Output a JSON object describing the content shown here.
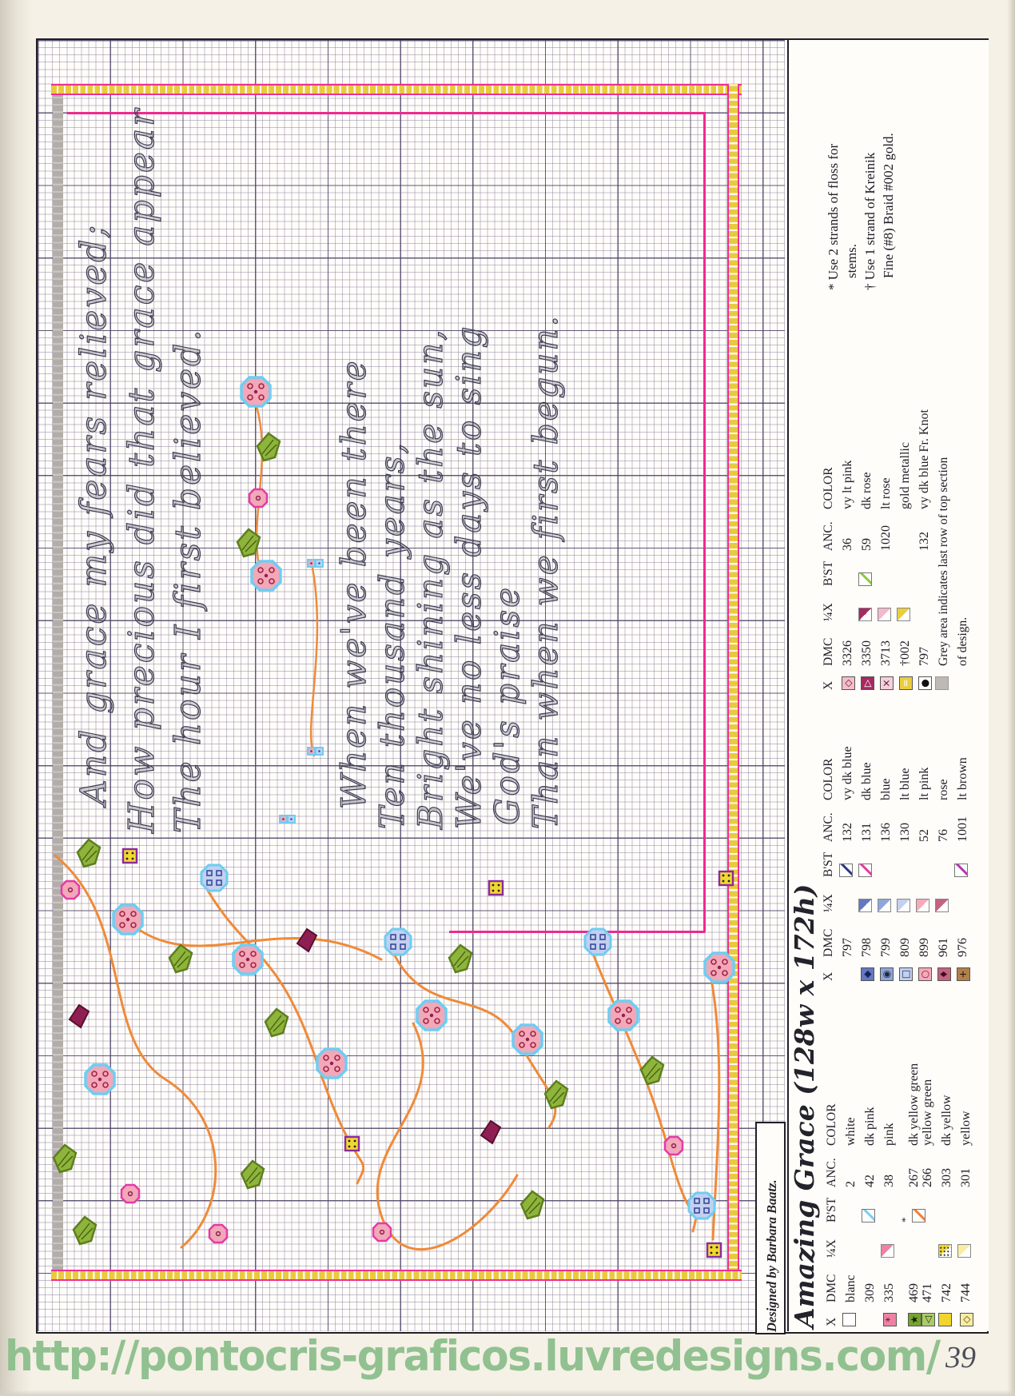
{
  "page": {
    "number": "39",
    "watermark_url": "http://pontocris-graficos.luvredesigns.com/"
  },
  "title": "Amazing Grace (128w x 172h)",
  "credit": "Designed by Barbara Baatz.",
  "notes": [
    "* Use 2 strands of floss for",
    "stems.",
    "† Use 1 strand of Kreinik",
    "Fine (#8) Braid #002 gold."
  ],
  "key": {
    "headers": [
      "X",
      "DMC",
      "¼X",
      "B'ST",
      "ANC.",
      "COLOR"
    ],
    "grey_color": "#bdb9b5",
    "grey_note_lines": [
      "Grey area indicates last row of top section",
      "of design."
    ],
    "groups": [
      {
        "rows": [
          {
            "dmc": "3326",
            "anc": "36",
            "color": "vy lt pink",
            "sym": {
              "bg": "#f5bdca",
              "glyph": "◇",
              "fg": "#5a2030"
            }
          },
          {
            "dmc": "3350",
            "anc": "59",
            "color": "dk rose",
            "sym": {
              "bg": "#a62a62",
              "glyph": "▷",
              "fg": "#ffffff"
            },
            "quarter": "#a62a62",
            "bst": "#8ecb3a"
          },
          {
            "dmc": "3713",
            "anc": "1020",
            "color": "lt rose",
            "sym": {
              "bg": "#f7cfda",
              "glyph": "×",
              "fg": "#3a2030"
            },
            "quarter": "#f2bacc"
          },
          {
            "dmc": "002",
            "prefix": "†",
            "anc": "",
            "color": "gold metallic",
            "sym": {
              "bg": "#eace3e",
              "glyph": "=",
              "fg": "#ffffff"
            },
            "quarter": "#eace3e"
          },
          {
            "dmc": "797",
            "anc": "132",
            "color": "vy dk blue Fr. Knot",
            "sym": {
              "bg": "#ffffff",
              "glyph": "●",
              "fg": "#111111"
            }
          }
        ],
        "has_grey_note": true
      },
      {
        "rows": [
          {
            "dmc": "797",
            "anc": "132",
            "color": "vy dk blue",
            "bst": "#2a3a8c"
          },
          {
            "dmc": "798",
            "anc": "131",
            "color": "dk blue",
            "sym": {
              "bg": "#6478c2",
              "glyph": "◆",
              "fg": "#16225e"
            },
            "quarter": "#6478c2",
            "bst": "#e43aa6"
          },
          {
            "dmc": "799",
            "anc": "136",
            "color": "blue",
            "sym": {
              "bg": "#8fa6da",
              "glyph": "◉",
              "fg": "#202840"
            },
            "quarter": "#8fa6da"
          },
          {
            "dmc": "809",
            "anc": "130",
            "color": "lt blue",
            "sym": {
              "bg": "#c3d0ef",
              "glyph": "□",
              "fg": "#2a3460"
            },
            "quarter": "#c3d0ef"
          },
          {
            "dmc": "899",
            "anc": "52",
            "color": "lt pink",
            "sym": {
              "bg": "#f7a9ba",
              "glyph": "○",
              "fg": "#701530"
            },
            "quarter": "#f7a9ba"
          },
          {
            "dmc": "961",
            "anc": "76",
            "color": "rose",
            "sym": {
              "bg": "#c2637f",
              "glyph": "♦",
              "fg": "#400a1e"
            },
            "quarter": "#c2637f"
          },
          {
            "dmc": "976",
            "anc": "1001",
            "color": "lt brown",
            "sym": {
              "bg": "#b38049",
              "glyph": "+",
              "fg": "#211208"
            },
            "bst": "#b03ab0"
          }
        ]
      },
      {
        "rows": [
          {
            "dmc": "blanc",
            "anc": "2",
            "color": "white",
            "sym": {
              "bg": "#ffffff",
              "pattern": "dots"
            }
          },
          {
            "dmc": "309",
            "anc": "42",
            "color": "dk pink",
            "bst": "#7fcbf2"
          },
          {
            "dmc": "335",
            "anc": "38",
            "color": "pink",
            "sym": {
              "bg": "#ef82a2",
              "glyph": "*",
              "fg": "#5a0a28"
            },
            "quarter": "#ef82a2"
          },
          {
            "dmc": "469",
            "anc": "267",
            "color": "dk yellow green",
            "sym": {
              "bg": "#77a22e",
              "glyph": "★",
              "fg": "#10230a"
            },
            "bst": "#f28132",
            "bst_mark": "*"
          },
          {
            "dmc": "471",
            "anc": "266",
            "color": "yellow green",
            "sym": {
              "bg": "#abcb67",
              "glyph": "◁",
              "fg": "#253015"
            }
          },
          {
            "dmc": "742",
            "anc": "303",
            "color": "dk yellow",
            "sym": {
              "bg": "#f2d52c",
              "pattern": "dots"
            },
            "quarter": "#f2d52c",
            "quarter_pattern": "dots"
          },
          {
            "dmc": "744",
            "anc": "301",
            "color": "yellow",
            "sym": {
              "bg": "#f8eda1",
              "glyph": "◇",
              "fg": "#5a4a18"
            },
            "quarter": "#f8eda1"
          }
        ]
      }
    ]
  },
  "verse": {
    "block1": [
      "And grace my fears relieved;",
      "How precious did that grace appear",
      "The hour I first believed."
    ],
    "block2": [
      "When we've been there",
      "Ten thousand years,",
      "Bright shining as the sun,",
      "We've no less days to sing",
      "God's praise",
      "Than when we first begun."
    ]
  },
  "colors": {
    "magenta_border": "#ee2a90",
    "gold_band": "#e9ca3f",
    "vine_orange": "#f08a38",
    "watermark_green": "#8cbf8c",
    "grid_major": "#483e62",
    "grid_minor": "#80768f"
  }
}
